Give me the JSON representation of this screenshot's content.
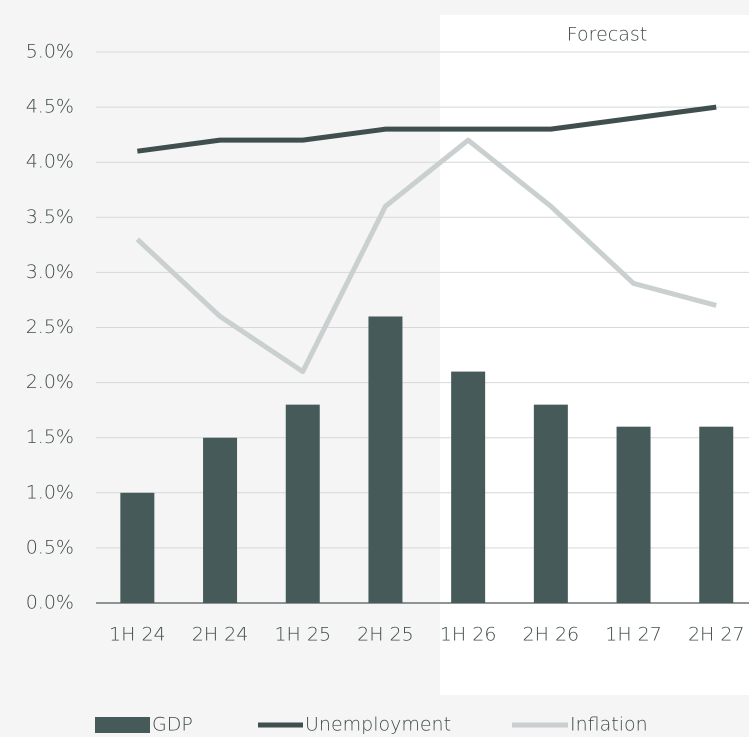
{
  "chart_data": {
    "type": "bar-line",
    "annotation": "Forecast",
    "categories": [
      "1H 24",
      "2H 24",
      "1H 25",
      "2H 25",
      "1H 26",
      "2H 26",
      "1H 27",
      "2H 27"
    ],
    "series": [
      {
        "name": "GDP",
        "type": "bar",
        "color": "#475a5a",
        "values": [
          1.0,
          1.5,
          1.8,
          2.6,
          2.1,
          1.8,
          1.6,
          1.6
        ]
      },
      {
        "name": "Unemployment",
        "type": "line",
        "color": "#3e4f4d",
        "values": [
          4.1,
          4.2,
          4.2,
          4.3,
          4.3,
          4.3,
          4.4,
          4.5
        ]
      },
      {
        "name": "Inflation",
        "type": "line",
        "color": "#c9d0cf",
        "values": [
          3.3,
          2.6,
          2.1,
          3.6,
          4.2,
          3.6,
          2.9,
          2.7
        ]
      }
    ],
    "ylim": [
      0,
      5
    ],
    "yticks": [
      {
        "value": 0,
        "label": "0.0%"
      },
      {
        "value": 0.5,
        "label": "0.5%"
      },
      {
        "value": 1,
        "label": "1.0%"
      },
      {
        "value": 1.5,
        "label": "1.5%"
      },
      {
        "value": 2,
        "label": "2.0%"
      },
      {
        "value": 2.5,
        "label": "2.5%"
      },
      {
        "value": 3,
        "label": "3.0%"
      },
      {
        "value": 3.5,
        "label": "3.5%"
      },
      {
        "value": 4,
        "label": "4.0%"
      },
      {
        "value": 4.5,
        "label": "4.5%"
      },
      {
        "value": 5,
        "label": "5.0%"
      }
    ],
    "grid": true,
    "legend": "bottom"
  }
}
